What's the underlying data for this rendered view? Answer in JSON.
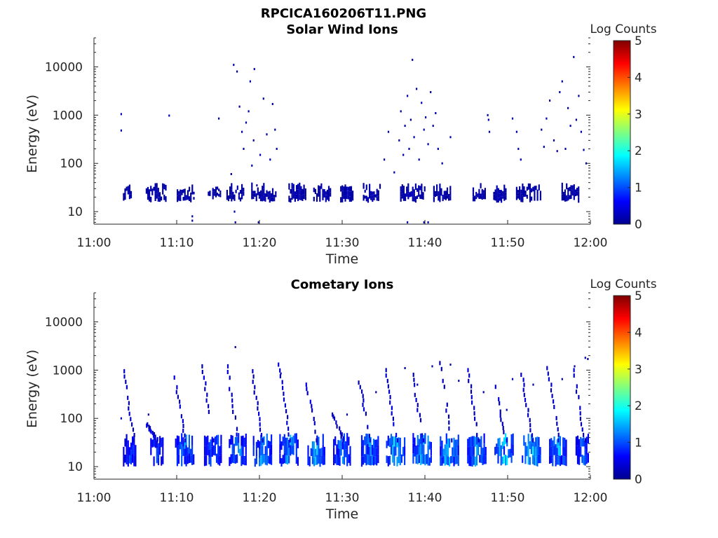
{
  "figure_title": "RPCICA160206T11.PNG",
  "colormap": [
    "#00008f",
    "#0000ff",
    "#0080ff",
    "#00ffff",
    "#80ff80",
    "#ffff00",
    "#ff8000",
    "#ff0000",
    "#800000"
  ],
  "chart_data": [
    {
      "type": "heatmap",
      "title": "Solar Wind Ions",
      "xlabel": "Time",
      "ylabel": "Energy (eV)",
      "xticks": [
        "11:00",
        "11:10",
        "11:20",
        "11:30",
        "11:40",
        "11:50",
        "12:00"
      ],
      "xlim_minutes": [
        0,
        60
      ],
      "yscale": "log",
      "ylim": [
        5.5,
        40000
      ],
      "yticks": [
        10,
        100,
        1000,
        10000
      ],
      "ytick_labels": [
        "10",
        "100",
        "1000",
        "10000"
      ],
      "colorbar": {
        "label": "Log Counts",
        "range": [
          0,
          5
        ],
        "ticks": [
          "0",
          "1",
          "2",
          "3",
          "4",
          "5"
        ]
      },
      "band_clusters": [
        {
          "t": 4.0,
          "w": 1.0,
          "lo": 17,
          "hi": 32,
          "level": 0.2
        },
        {
          "t": 7.5,
          "w": 2.5,
          "lo": 17,
          "hi": 32,
          "level": 0.2
        },
        {
          "t": 11.0,
          "w": 2.0,
          "lo": 17,
          "hi": 32,
          "level": 0.2
        },
        {
          "t": 14.5,
          "w": 1.5,
          "lo": 20,
          "hi": 32,
          "level": 0.2
        },
        {
          "t": 17.0,
          "w": 2.0,
          "lo": 17,
          "hi": 32,
          "level": 0.2
        },
        {
          "t": 20.5,
          "w": 3.0,
          "lo": 17,
          "hi": 32,
          "level": 0.2
        },
        {
          "t": 24.5,
          "w": 2.0,
          "lo": 17,
          "hi": 32,
          "level": 0.2
        },
        {
          "t": 27.5,
          "w": 2.0,
          "lo": 17,
          "hi": 32,
          "level": 0.2
        },
        {
          "t": 30.5,
          "w": 1.5,
          "lo": 17,
          "hi": 32,
          "level": 0.2
        },
        {
          "t": 33.5,
          "w": 2.0,
          "lo": 17,
          "hi": 32,
          "level": 0.2
        },
        {
          "t": 38.5,
          "w": 3.0,
          "lo": 17,
          "hi": 32,
          "level": 0.25
        },
        {
          "t": 42.0,
          "w": 2.0,
          "lo": 17,
          "hi": 32,
          "level": 0.2
        },
        {
          "t": 46.5,
          "w": 1.5,
          "lo": 17,
          "hi": 32,
          "level": 0.2
        },
        {
          "t": 49.0,
          "w": 1.5,
          "lo": 17,
          "hi": 32,
          "level": 0.2
        },
        {
          "t": 52.5,
          "w": 3.0,
          "lo": 17,
          "hi": 32,
          "level": 0.2
        },
        {
          "t": 57.5,
          "w": 2.0,
          "lo": 17,
          "hi": 32,
          "level": 0.2
        }
      ],
      "sparse_pixels": [
        [
          3.2,
          1050
        ],
        [
          3.2,
          480
        ],
        [
          9.0,
          980
        ],
        [
          15.0,
          850
        ],
        [
          16.5,
          60
        ],
        [
          16.8,
          11000
        ],
        [
          17.2,
          8000
        ],
        [
          17.5,
          1500
        ],
        [
          17.8,
          450
        ],
        [
          18.0,
          200
        ],
        [
          18.3,
          700
        ],
        [
          18.6,
          1200
        ],
        [
          18.8,
          5000
        ],
        [
          19.0,
          90
        ],
        [
          19.2,
          300
        ],
        [
          19.3,
          9000
        ],
        [
          19.6,
          35
        ],
        [
          20.0,
          150
        ],
        [
          20.4,
          2200
        ],
        [
          20.8,
          400
        ],
        [
          21.2,
          120
        ],
        [
          21.5,
          1700
        ],
        [
          21.8,
          500
        ],
        [
          22.0,
          200
        ],
        [
          11.8,
          8
        ],
        [
          11.8,
          6.5
        ],
        [
          16.9,
          10
        ],
        [
          17.0,
          6
        ],
        [
          19.8,
          6
        ],
        [
          35.0,
          120
        ],
        [
          35.5,
          450
        ],
        [
          36.2,
          65
        ],
        [
          36.8,
          300
        ],
        [
          37.0,
          1200
        ],
        [
          37.3,
          150
        ],
        [
          37.5,
          600
        ],
        [
          37.8,
          2500
        ],
        [
          38.0,
          200
        ],
        [
          38.2,
          800
        ],
        [
          38.4,
          14000
        ],
        [
          38.6,
          350
        ],
        [
          38.9,
          3500
        ],
        [
          39.2,
          120
        ],
        [
          39.5,
          1800
        ],
        [
          39.8,
          500
        ],
        [
          40.0,
          900
        ],
        [
          40.3,
          250
        ],
        [
          40.6,
          3000
        ],
        [
          40.9,
          600
        ],
        [
          41.2,
          1100
        ],
        [
          41.5,
          200
        ],
        [
          42.0,
          100
        ],
        [
          43.0,
          350
        ],
        [
          37.8,
          6
        ],
        [
          39.8,
          6
        ],
        [
          40.3,
          6
        ],
        [
          47.5,
          1000
        ],
        [
          47.6,
          800
        ],
        [
          47.7,
          450
        ],
        [
          50.5,
          850
        ],
        [
          51.0,
          450
        ],
        [
          51.2,
          200
        ],
        [
          51.5,
          120
        ],
        [
          54.0,
          500
        ],
        [
          54.3,
          220
        ],
        [
          54.6,
          850
        ],
        [
          55.0,
          2000
        ],
        [
          55.5,
          300
        ],
        [
          55.9,
          180
        ],
        [
          56.2,
          3000
        ],
        [
          56.5,
          5000
        ],
        [
          56.9,
          200
        ],
        [
          57.2,
          1400
        ],
        [
          57.5,
          600
        ],
        [
          57.9,
          16000
        ],
        [
          58.2,
          800
        ],
        [
          58.5,
          2500
        ],
        [
          58.8,
          450
        ],
        [
          59.1,
          190
        ],
        [
          59.4,
          100
        ]
      ]
    },
    {
      "type": "heatmap",
      "title": "Cometary Ions",
      "xlabel": "Time",
      "ylabel": "Energy (eV)",
      "xticks": [
        "11:00",
        "11:10",
        "11:20",
        "11:30",
        "11:40",
        "11:50",
        "12:00"
      ],
      "xlim_minutes": [
        0,
        60
      ],
      "yscale": "log",
      "ylim": [
        5.5,
        40000
      ],
      "yticks": [
        10,
        100,
        1000,
        10000
      ],
      "ytick_labels": [
        "10",
        "100",
        "1000",
        "10000"
      ],
      "colorbar": {
        "label": "Log Counts",
        "range": [
          0,
          5
        ],
        "ticks": [
          "0",
          "1",
          "2",
          "3",
          "4",
          "5"
        ]
      },
      "band_clusters": [
        {
          "t": 4.3,
          "w": 1.6,
          "lo": 11,
          "hi": 38,
          "level": 0.9
        },
        {
          "t": 7.6,
          "w": 1.6,
          "lo": 11,
          "hi": 38,
          "level": 1.0
        },
        {
          "t": 10.9,
          "w": 2.2,
          "lo": 11,
          "hi": 40,
          "level": 1.3
        },
        {
          "t": 14.3,
          "w": 2.0,
          "lo": 11,
          "hi": 40,
          "level": 1.2
        },
        {
          "t": 17.3,
          "w": 2.0,
          "lo": 11,
          "hi": 40,
          "level": 1.3
        },
        {
          "t": 20.3,
          "w": 2.2,
          "lo": 11,
          "hi": 40,
          "level": 1.4
        },
        {
          "t": 23.5,
          "w": 2.2,
          "lo": 11,
          "hi": 40,
          "level": 1.4
        },
        {
          "t": 26.8,
          "w": 2.0,
          "lo": 11,
          "hi": 40,
          "level": 1.5
        },
        {
          "t": 29.9,
          "w": 2.0,
          "lo": 11,
          "hi": 40,
          "level": 1.3
        },
        {
          "t": 33.2,
          "w": 2.2,
          "lo": 11,
          "hi": 40,
          "level": 1.4
        },
        {
          "t": 36.4,
          "w": 2.2,
          "lo": 11,
          "hi": 40,
          "level": 1.6
        },
        {
          "t": 39.6,
          "w": 2.2,
          "lo": 11,
          "hi": 40,
          "level": 1.6
        },
        {
          "t": 42.9,
          "w": 2.2,
          "lo": 11,
          "hi": 40,
          "level": 1.7
        },
        {
          "t": 46.2,
          "w": 2.2,
          "lo": 11,
          "hi": 40,
          "level": 1.5
        },
        {
          "t": 49.5,
          "w": 2.2,
          "lo": 11,
          "hi": 40,
          "level": 1.6
        },
        {
          "t": 52.8,
          "w": 2.2,
          "lo": 11,
          "hi": 40,
          "level": 1.7
        },
        {
          "t": 56.0,
          "w": 2.0,
          "lo": 11,
          "hi": 40,
          "level": 1.5
        },
        {
          "t": 59.0,
          "w": 1.6,
          "lo": 11,
          "hi": 40,
          "level": 1.2
        }
      ],
      "stalks": [
        {
          "t": 3.5,
          "top": 950
        },
        {
          "t": 6.3,
          "top": 75
        },
        {
          "t": 9.7,
          "top": 700
        },
        {
          "t": 13.0,
          "top": 1200
        },
        {
          "t": 16.0,
          "top": 1200
        },
        {
          "t": 19.0,
          "top": 950
        },
        {
          "t": 22.3,
          "top": 1300
        },
        {
          "t": 25.6,
          "top": 500
        },
        {
          "t": 28.8,
          "top": 120
        },
        {
          "t": 32.0,
          "top": 550
        },
        {
          "t": 35.2,
          "top": 1000
        },
        {
          "t": 38.4,
          "top": 800
        },
        {
          "t": 41.8,
          "top": 1400
        },
        {
          "t": 45.1,
          "top": 1000
        },
        {
          "t": 48.4,
          "top": 450
        },
        {
          "t": 51.6,
          "top": 800
        },
        {
          "t": 54.8,
          "top": 1100
        },
        {
          "t": 57.9,
          "top": 1000
        }
      ],
      "sparse_pixels": [
        [
          17.0,
          3000
        ],
        [
          3.2,
          100
        ],
        [
          6.5,
          120
        ],
        [
          22.5,
          850
        ],
        [
          30.5,
          120
        ],
        [
          34.0,
          350
        ],
        [
          37.5,
          1100
        ],
        [
          39.0,
          500
        ],
        [
          40.8,
          1200
        ],
        [
          43.0,
          1300
        ],
        [
          44.0,
          600
        ],
        [
          47.0,
          350
        ],
        [
          49.8,
          150
        ],
        [
          50.5,
          650
        ],
        [
          53.0,
          500
        ],
        [
          56.5,
          650
        ],
        [
          58.0,
          1200
        ],
        [
          59.3,
          1800
        ],
        [
          59.6,
          1700
        ]
      ]
    }
  ]
}
